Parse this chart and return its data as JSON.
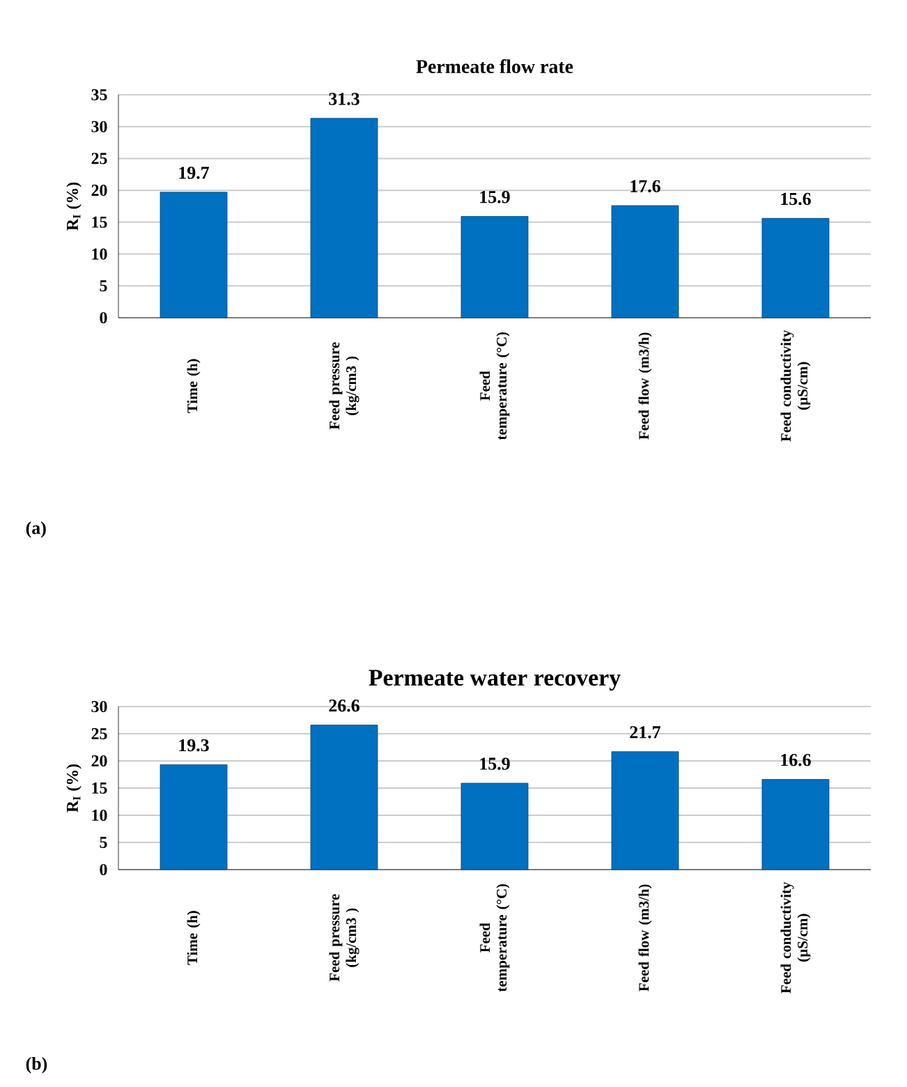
{
  "chart_data": [
    {
      "type": "bar",
      "title": "Permeate flow rate",
      "ylabel": "R$_{I}$ (%)",
      "categories": [
        "Time (h)",
        "Feed pressure (kg/cm3 )",
        "Feed temperature (°C)",
        "Feed flow (m3/h)",
        "Feed conductivity (µS/cm)"
      ],
      "values": [
        19.7,
        31.3,
        15.9,
        17.6,
        15.6
      ],
      "color": "#0070c0",
      "ylim": [
        0,
        35
      ],
      "yticks": [
        0,
        5,
        10,
        15,
        20,
        25,
        30,
        35
      ],
      "grid": "y",
      "data_labels": true,
      "annotations": [
        "(a)"
      ]
    },
    {
      "type": "bar",
      "title": "Permeate water recovery",
      "ylabel": "R$_{I}$ (%)",
      "categories": [
        "Time (h)",
        "Feed pressure (kg/cm3 )",
        "Feed temperature (°C)",
        "Feed flow (m3/h)",
        "Feed conductivity (µS/cm)"
      ],
      "values": [
        19.3,
        26.6,
        15.9,
        21.7,
        16.6
      ],
      "color": "#0070c0",
      "ylim": [
        0,
        30
      ],
      "yticks": [
        0,
        5,
        10,
        15,
        20,
        25,
        30
      ],
      "grid": "y",
      "data_labels": true,
      "annotations": [
        "(b)"
      ]
    }
  ]
}
